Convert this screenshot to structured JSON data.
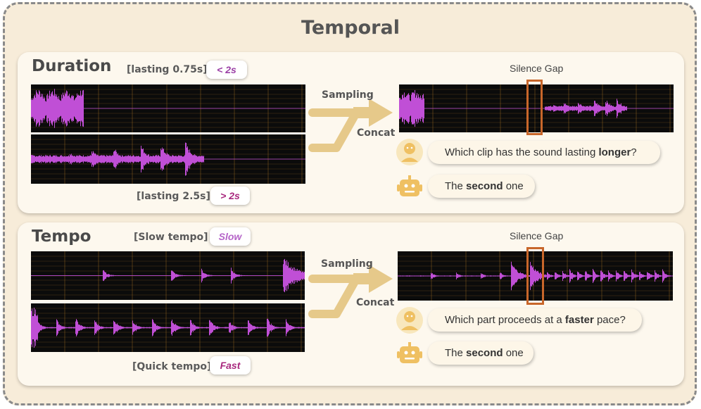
{
  "title": "Temporal",
  "duration": {
    "heading": "Duration",
    "top_label": "[lasting 0.75s]",
    "top_pill": "< 2s",
    "bottom_label": "[lasting 2.5s]",
    "bottom_pill": "> 2s",
    "arrow_top": "Sampling",
    "arrow_bottom": "Concat",
    "gap_label": "Silence Gap",
    "question": {
      "pre": "Which clip has the sound lasting ",
      "bold": "longer",
      "post": "?"
    },
    "answer": {
      "pre": "The ",
      "bold": "second",
      "post": " one"
    }
  },
  "tempo": {
    "heading": "Tempo",
    "top_label": "[Slow tempo]",
    "top_pill": "Slow",
    "bottom_label": "[Quick tempo]",
    "bottom_pill": "Fast",
    "arrow_top": "Sampling",
    "arrow_bottom": "Concat",
    "gap_label": "Silence Gap",
    "question": {
      "pre": "Which part proceeds at a ",
      "bold": "faster",
      "post": " pace?"
    },
    "answer": {
      "pre": "The ",
      "bold": "second",
      "post": " one"
    }
  },
  "colors": {
    "waveform": "#c04fd6",
    "waveform_bg": "#0b0b0b",
    "grid": "#c8892a",
    "arrow": "#e6c98a",
    "gap_box": "#c8662a",
    "accent_avatar": "#efc062"
  },
  "icons": [
    "user-avatar-icon",
    "robot-avatar-icon",
    "right-arrow-icon"
  ]
}
